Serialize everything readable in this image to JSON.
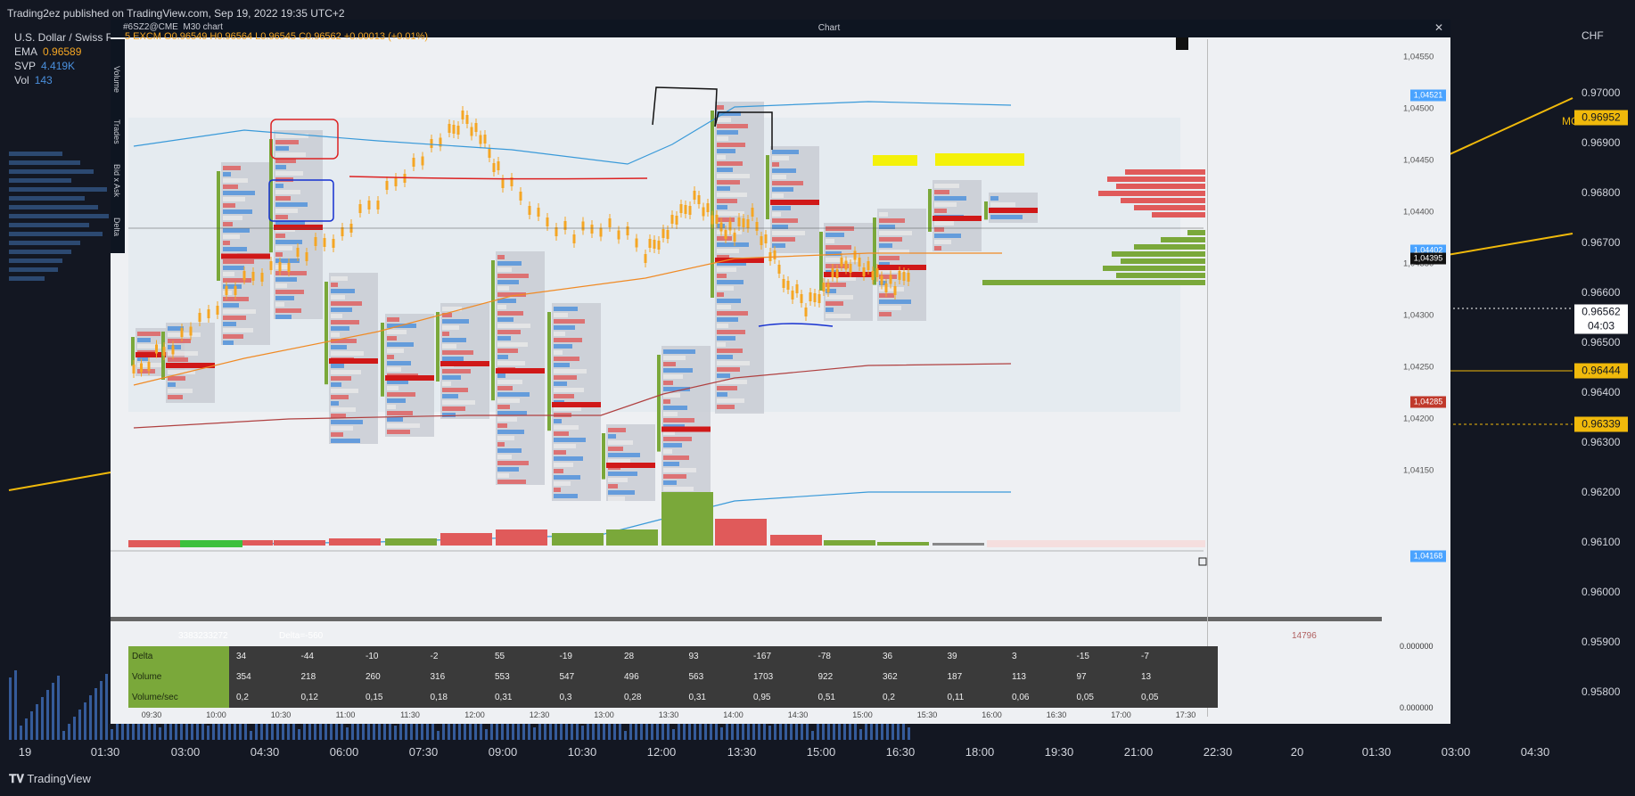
{
  "publisher": "Trading2ez published on TradingView.com, Sep 19, 2022 19:35 UTC+2",
  "legend": {
    "title": "U.S. Dollar / Swiss Franc",
    "ema_label": "EMA",
    "ema_value": "0.96589",
    "svp_label": "SVP",
    "svp_value": "4.419K",
    "vol_label": "Vol",
    "vol_value": "143"
  },
  "inner_chart": {
    "symbol": "#6SZ2@CME",
    "interval": "M30 chart",
    "window_title": "Chart",
    "ohlc_text": "5  EXCM  O0.96549  H0.96564  L0.96545  C0.96562  +0.00013 (+0.01%)",
    "price_ticks": [
      "1,04550",
      "1,04500",
      "1,04450",
      "1,04400",
      "1,04350",
      "1,04300",
      "1,04250",
      "1,04200",
      "1,04150"
    ],
    "tags": [
      {
        "text": "1,04521",
        "color": "#4aa3ff"
      },
      {
        "text": "1,04402",
        "color": "#4aa3ff"
      },
      {
        "text": "1,04395",
        "color": "#111111"
      },
      {
        "text": "1,04285",
        "color": "#c0392b"
      },
      {
        "text": "1,04168",
        "color": "#4aa3ff"
      }
    ],
    "zero_a": "0.000000",
    "zero_b": "0.000000",
    "time_ticks": [
      "09:30",
      "10:00",
      "10:30",
      "11:00",
      "11:30",
      "12:00",
      "12:30",
      "13:00",
      "13:30",
      "14:00",
      "14:30",
      "15:00",
      "15:30",
      "16:00",
      "16:30",
      "17:00",
      "17:30"
    ],
    "side_tabs": [
      "Volume",
      "Trades",
      "Bid x Ask",
      "Delta"
    ],
    "footer_left": "3383233272",
    "footer_delta": "Delta=-560",
    "footer_right": "14796",
    "stats": {
      "rows": [
        "Delta",
        "Volume",
        "Volume/sec"
      ],
      "delta": [
        "34",
        "-44",
        "-10",
        "-2",
        "55",
        "-19",
        "28",
        "93",
        "-167",
        "-78",
        "36",
        "39",
        "3",
        "-15",
        "-7"
      ],
      "volume": [
        "354",
        "218",
        "260",
        "316",
        "553",
        "547",
        "496",
        "563",
        "1703",
        "922",
        "362",
        "187",
        "113",
        "97",
        "13"
      ],
      "volsec": [
        "0,2",
        "0,12",
        "0,15",
        "0,18",
        "0,31",
        "0,3",
        "0,28",
        "0,31",
        "0,95",
        "0,51",
        "0,2",
        "0,11",
        "0,06",
        "0,05",
        "0,05"
      ]
    }
  },
  "main_axis": {
    "currency": "CHF",
    "ticks": [
      "0.97000",
      "0.96900",
      "0.96800",
      "0.96700",
      "0.96600",
      "0.96500",
      "0.96400",
      "0.96300",
      "0.96200",
      "0.96100",
      "0.96000",
      "0.95900",
      "0.95800"
    ],
    "tags": [
      {
        "text": "0.96952",
        "bg": "#f0b90b",
        "fg": "#131722"
      },
      {
        "text": "0.96562",
        "bg": "#ffffff",
        "fg": "#131722"
      },
      {
        "text": "04:03",
        "bg": "#ffffff",
        "fg": "#131722"
      },
      {
        "text": "0.96444",
        "bg": "#f0b90b",
        "fg": "#131722"
      },
      {
        "text": "0.96339",
        "bg": "#f0b90b",
        "fg": "#131722"
      }
    ],
    "ma_label": "MO"
  },
  "time_axis": [
    "19",
    "01:30",
    "03:00",
    "04:30",
    "06:00",
    "07:30",
    "09:00",
    "10:30",
    "12:00",
    "13:30",
    "15:00",
    "16:30",
    "18:00",
    "19:30",
    "21:00",
    "22:30",
    "20",
    "01:30",
    "03:00",
    "04:30"
  ],
  "brand": "TradingView",
  "colors": {
    "bg": "#131722",
    "inner_bg": "#eef0f3",
    "candle": "#f5a623",
    "buy": "#7aa83a",
    "sell": "#e05a5a",
    "blue": "#4a8fdc"
  }
}
